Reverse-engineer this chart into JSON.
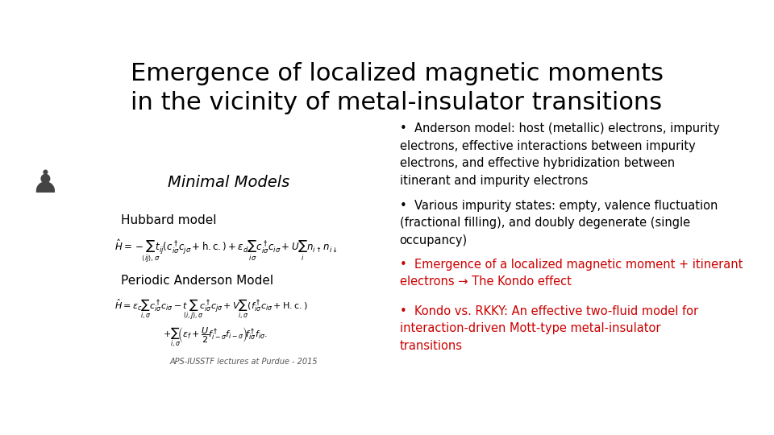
{
  "background_color": "#ffffff",
  "title_line1": "Emergence of localized magnetic moments",
  "title_line2": "in the vicinity of metal-insulator transitions",
  "title_fontsize": 22,
  "title_color": "#000000",
  "left_label_minimal": "Minimal Models",
  "left_label_hubbard": "Hubbard model",
  "left_label_periodic": "Periodic Anderson Model",
  "left_label_credit": "APS-IUSSTF lectures at Purdue - 2015",
  "bullet1": "Anderson model: host (metallic) electrons, impurity\nelectrons, effective interactions between impurity\nelectrons, and effective hybridization between\nitinerant and impurity electrons",
  "bullet2": "Various impurity states: empty, valence fluctuation\n(fractional filling), and doubly degenerate (single\noccupancy)",
  "bullet3": "Emergence of a localized magnetic moment + itinerant\nelectrons → The Kondo effect",
  "bullet4": "Kondo vs. RKKY: An effective two-fluid model for\ninteraction-driven Mott-type metal-insulator\ntransitions",
  "bullet_color_black": "#000000",
  "bullet_color_red": "#cc0000",
  "bullet_fontsize": 10.5
}
